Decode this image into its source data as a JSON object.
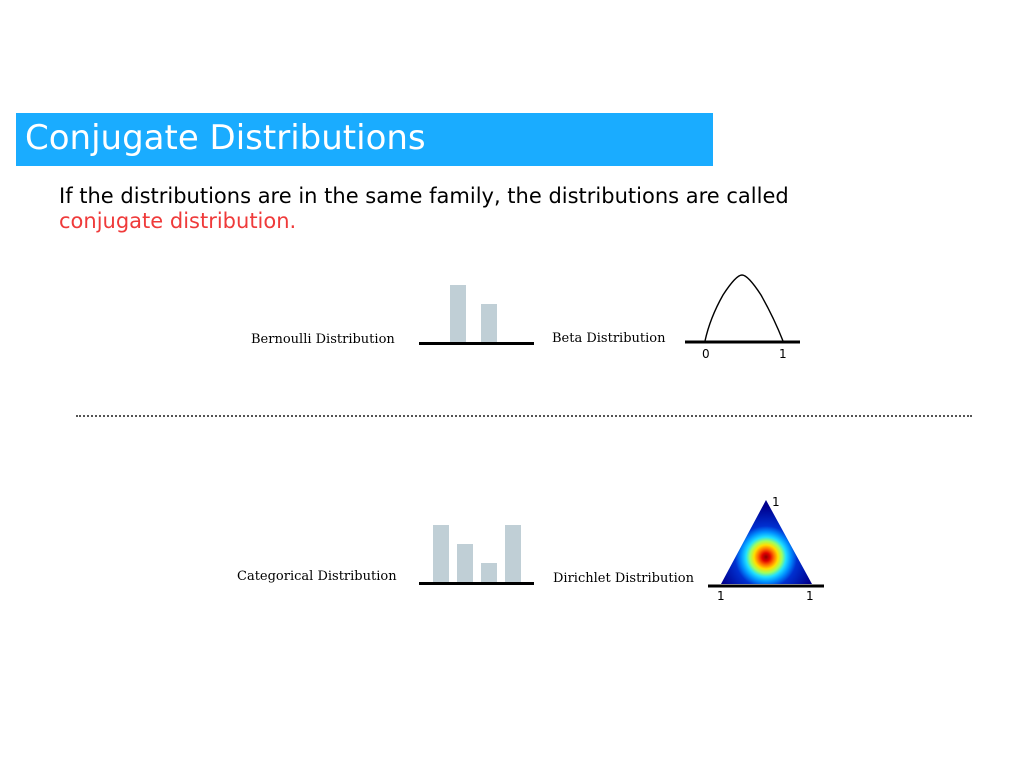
{
  "slide": {
    "title": "Conjugate Distributions",
    "body_text": "If the distributions are in the same family, the distributions are called",
    "highlight_text": "conjugate distribution.",
    "title_bar_color": "#1aacff",
    "highlight_color": "#ef3a3a"
  },
  "top_row": {
    "left_label": "Bernoulli Distribution",
    "right_label": "Beta Distribution",
    "bar_values": [
      1.0,
      0.67
    ],
    "beta_tick_0": "0",
    "beta_tick_1": "1"
  },
  "bottom_row": {
    "left_label": "Categorical Distribution",
    "right_label": "Dirichlet Distribution",
    "bar_values": [
      1.0,
      0.67,
      0.33,
      1.0
    ],
    "dirichlet_top_label": "1",
    "dirichlet_left_label": "1",
    "dirichlet_right_label": "1"
  },
  "bar_color": "#c0cfd6"
}
